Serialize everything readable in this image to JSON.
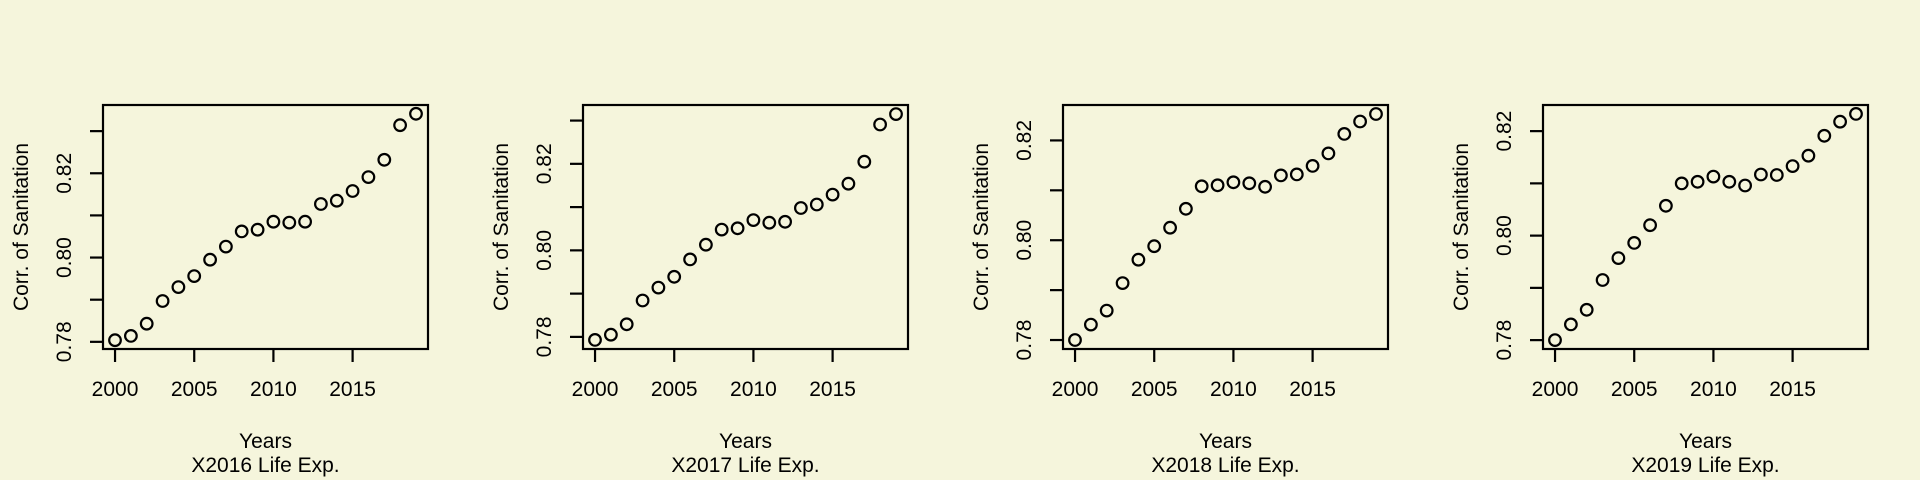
{
  "page": {
    "background_color": "#f5f5dc",
    "foreground_color": "#000000"
  },
  "chart_data": [
    {
      "type": "scatter",
      "marker": "open-circle",
      "grid": false,
      "xlabel": "Years",
      "sublabel": "X2016 Life Exp.",
      "ylabel": "Corr. of Sanitation",
      "x": [
        2000,
        2001,
        2002,
        2003,
        2004,
        2005,
        2006,
        2007,
        2008,
        2009,
        2010,
        2011,
        2012,
        2013,
        2014,
        2015,
        2016,
        2017,
        2018,
        2019
      ],
      "y": [
        0.7804,
        0.7814,
        0.7843,
        0.7897,
        0.793,
        0.7956,
        0.7995,
        0.8026,
        0.8062,
        0.8066,
        0.8085,
        0.8083,
        0.8085,
        0.8127,
        0.8135,
        0.8158,
        0.8191,
        0.8232,
        0.8314,
        0.8341
      ],
      "xlim": [
        1999.24,
        2019.76
      ],
      "ylim": [
        0.7783,
        0.8362
      ],
      "x_ticks": [
        2000,
        2005,
        2010,
        2015
      ],
      "x_tick_labels": [
        "2000",
        "2005",
        "2010",
        "2015"
      ],
      "y_tick_step": 0.01,
      "y_labeled_ticks": [
        0.78,
        0.8,
        0.82
      ],
      "y_tick_labels": [
        "0.78",
        "0.80",
        "0.82"
      ]
    },
    {
      "type": "scatter",
      "marker": "open-circle",
      "grid": false,
      "xlabel": "Years",
      "sublabel": "X2017 Life Exp.",
      "ylabel": "Corr. of Sanitation",
      "x": [
        2000,
        2001,
        2002,
        2003,
        2004,
        2005,
        2006,
        2007,
        2008,
        2009,
        2010,
        2011,
        2012,
        2013,
        2014,
        2015,
        2016,
        2017,
        2018,
        2019
      ],
      "y": [
        0.7793,
        0.7805,
        0.7829,
        0.7884,
        0.7914,
        0.7939,
        0.7979,
        0.8013,
        0.8048,
        0.8051,
        0.807,
        0.8064,
        0.8066,
        0.8098,
        0.8106,
        0.8129,
        0.8154,
        0.8205,
        0.8291,
        0.8315
      ],
      "xlim": [
        1999.24,
        2019.76
      ],
      "ylim": [
        0.7772,
        0.8336
      ],
      "x_ticks": [
        2000,
        2005,
        2010,
        2015
      ],
      "x_tick_labels": [
        "2000",
        "2005",
        "2010",
        "2015"
      ],
      "y_tick_step": 0.01,
      "y_labeled_ticks": [
        0.78,
        0.8,
        0.82
      ],
      "y_tick_labels": [
        "0.78",
        "0.80",
        "0.82"
      ]
    },
    {
      "type": "scatter",
      "marker": "open-circle",
      "grid": false,
      "xlabel": "Years",
      "sublabel": "X2018 Life Exp.",
      "ylabel": "Corr. of Sanitation",
      "x": [
        2000,
        2001,
        2002,
        2003,
        2004,
        2005,
        2006,
        2007,
        2008,
        2009,
        2010,
        2011,
        2012,
        2013,
        2014,
        2015,
        2016,
        2017,
        2018,
        2019
      ],
      "y": [
        0.78,
        0.7831,
        0.7859,
        0.7914,
        0.7961,
        0.7988,
        0.8025,
        0.8063,
        0.8108,
        0.811,
        0.8116,
        0.8114,
        0.8107,
        0.813,
        0.8132,
        0.8149,
        0.8174,
        0.8213,
        0.8238,
        0.8253
      ],
      "xlim": [
        1999.24,
        2019.76
      ],
      "ylim": [
        0.7782,
        0.8271
      ],
      "x_ticks": [
        2000,
        2005,
        2010,
        2015
      ],
      "x_tick_labels": [
        "2000",
        "2005",
        "2010",
        "2015"
      ],
      "y_tick_step": 0.01,
      "y_labeled_ticks": [
        0.78,
        0.8,
        0.82
      ],
      "y_tick_labels": [
        "0.78",
        "0.80",
        "0.82"
      ]
    },
    {
      "type": "scatter",
      "marker": "open-circle",
      "grid": false,
      "xlabel": "Years",
      "sublabel": "X2019 Life Exp.",
      "ylabel": "Corr. of Sanitation",
      "x": [
        2000,
        2001,
        2002,
        2003,
        2004,
        2005,
        2006,
        2007,
        2008,
        2009,
        2010,
        2011,
        2012,
        2013,
        2014,
        2015,
        2016,
        2017,
        2018,
        2019
      ],
      "y": [
        0.78,
        0.783,
        0.7858,
        0.7915,
        0.7957,
        0.7986,
        0.802,
        0.8057,
        0.81,
        0.8103,
        0.8113,
        0.8103,
        0.8096,
        0.8117,
        0.8116,
        0.8133,
        0.8153,
        0.8191,
        0.8218,
        0.8233
      ],
      "xlim": [
        1999.24,
        2019.76
      ],
      "ylim": [
        0.7783,
        0.825
      ],
      "x_ticks": [
        2000,
        2005,
        2010,
        2015
      ],
      "x_tick_labels": [
        "2000",
        "2005",
        "2010",
        "2015"
      ],
      "y_tick_step": 0.01,
      "y_labeled_ticks": [
        0.78,
        0.8,
        0.82
      ],
      "y_tick_labels": [
        "0.78",
        "0.80",
        "0.82"
      ]
    }
  ]
}
